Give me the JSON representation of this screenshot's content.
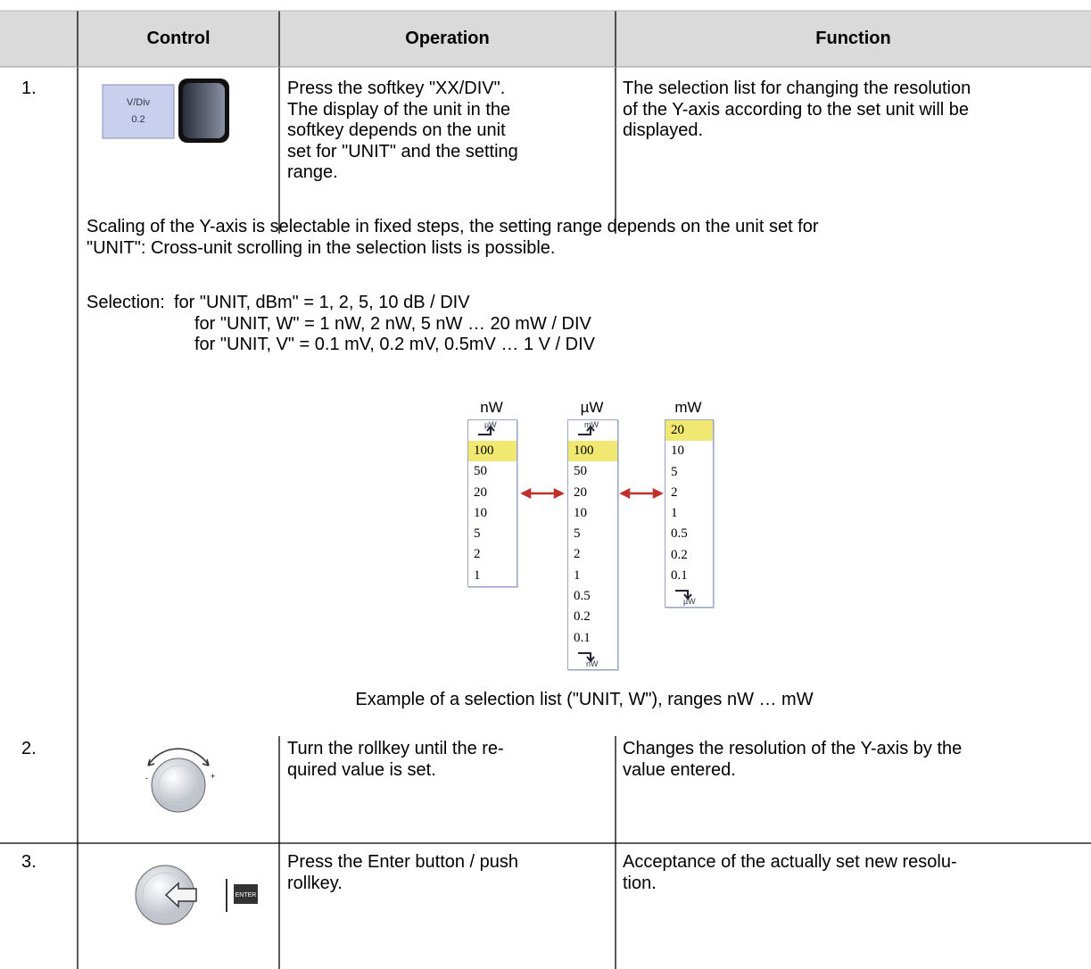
{
  "header": {
    "control": "Control",
    "operation": "Operation",
    "function": "Function"
  },
  "rows": [
    {
      "number": "1.",
      "control": {
        "softkey_label": "V/Div",
        "softkey_value": "0.2"
      },
      "operation": [
        "Press the softkey \"XX/DIV\".",
        "The display of the unit in the",
        "softkey depends on the unit",
        "set for \"UNIT\" and the setting",
        "range."
      ],
      "function": [
        "The selection list for changing the resolution",
        "of the Y-axis according to the set unit will be",
        "displayed."
      ]
    },
    {
      "number": "2.",
      "operation": [
        "Turn the rollkey until the re-",
        "quired value is set."
      ],
      "function": [
        "Changes the resolution of the Y-axis by the",
        "value entered."
      ]
    },
    {
      "number": "3.",
      "control": {
        "button_label": "ENTER"
      },
      "operation": [
        "Press the Enter button / push",
        "rollkey."
      ],
      "function": [
        "Acceptance of the actually set new resolu-",
        "tion."
      ]
    }
  ],
  "note": {
    "text": [
      "Scaling of the Y-axis is selectable in fixed steps, the setting range depends on the unit set for",
      "\"UNIT\": Cross-unit scrolling in the selection lists is possible."
    ],
    "selection_label": "Selection:",
    "selection": [
      "for \"UNIT, dBm\" = 1, 2, 5, 10 dB / DIV",
      "for \"UNIT, W\" = 1 nW, 2 nW, 5 nW … 20 mW / DIV",
      "for \"UNIT, V\" = 0.1 mV, 0.2 mV, 0.5mV … 1 V / DIV"
    ],
    "lists": [
      {
        "title": "nW",
        "top_icon": "µW",
        "items": [
          "100",
          "50",
          "20",
          "10",
          "5",
          "2",
          "1"
        ],
        "highlight_index": 0
      },
      {
        "title": "µW",
        "top_icon": "mW",
        "items": [
          "100",
          "50",
          "20",
          "10",
          "5",
          "2",
          "1",
          "0.5",
          "0.2",
          "0.1"
        ],
        "bottom_icon": "nW",
        "highlight_index": 0
      },
      {
        "title": "mW",
        "items": [
          "20",
          "10",
          "5",
          "2",
          "1",
          "0.5",
          "0.2",
          "0.1"
        ],
        "bottom_icon": "µW",
        "highlight_index": 0
      }
    ],
    "caption": "Example of a selection list (\"UNIT, W\"), ranges nW … mW"
  }
}
